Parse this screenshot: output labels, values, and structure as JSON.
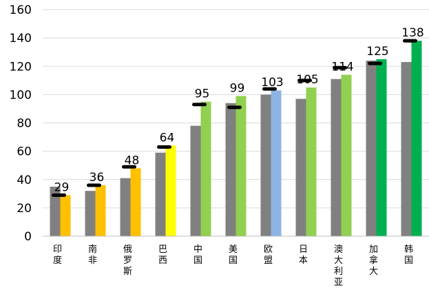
{
  "chart_data": {
    "type": "bar",
    "title": "",
    "xlabel": "",
    "ylabel": "",
    "ylim": [
      0,
      160
    ],
    "yticks": [
      0,
      20,
      40,
      60,
      80,
      100,
      120,
      140,
      160
    ],
    "grid": true,
    "legend": "none",
    "categories": [
      "印度",
      "南非",
      "俄罗斯",
      "巴西",
      "中国",
      "美国",
      "欧盟",
      "日本",
      "澳大利亚",
      "加拿大",
      "韩国"
    ],
    "series": [
      {
        "values": [
          35,
          32,
          41,
          59,
          78,
          94,
          100,
          97,
          111,
          124,
          123
        ],
        "color": "#808080"
      },
      {
        "values": [
          29,
          36,
          48,
          64,
          95,
          99,
          103,
          105,
          114,
          125,
          138
        ],
        "colors": [
          "#FFC000",
          "#FFC000",
          "#FFC000",
          "#FFFF00",
          "#92D050",
          "#92D050",
          "#8DB4E2",
          "#92D050",
          "#92D050",
          "#00B050",
          "#00B050"
        ],
        "data_labels": [
          "29",
          "36",
          "48",
          "64",
          "95",
          "99",
          "103",
          "105",
          "114",
          "125",
          "138"
        ]
      }
    ],
    "markers": [
      29,
      36,
      49,
      63,
      93,
      91,
      104,
      110,
      119,
      122,
      138
    ],
    "marker_color": "#000000"
  }
}
